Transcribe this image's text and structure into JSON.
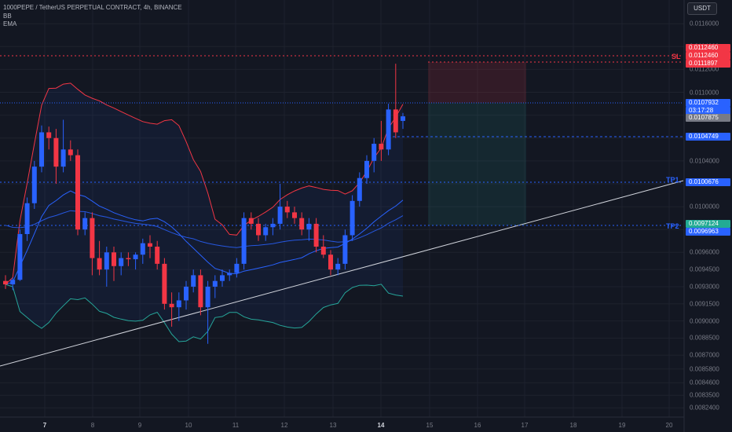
{
  "header": {
    "symbol_line": "1000PEPE / TetherUS PERPETUAL CONTRACT, 4h, BINANCE",
    "indicator_1": "BB",
    "indicator_2": "EMA"
  },
  "currency_button": "USDT",
  "price_axis": {
    "ticks": [
      "0.0116000",
      "0.0114000",
      "0.0112000",
      "0.0110000",
      "0.0108000",
      "0.0106000",
      "0.0104000",
      "0.0102000",
      "0.0100000",
      "0.0098000",
      "0.0096000",
      "0.0094500",
      "0.0093000",
      "0.0091500",
      "0.0090000",
      "0.0088500",
      "0.0087000",
      "0.0085800",
      "0.0084600",
      "0.0083500",
      "0.0082400"
    ]
  },
  "time_axis": {
    "ticks": [
      {
        "label": "7",
        "bold": true
      },
      {
        "label": "8",
        "bold": false
      },
      {
        "label": "9",
        "bold": false
      },
      {
        "label": "10",
        "bold": false
      },
      {
        "label": "11",
        "bold": false
      },
      {
        "label": "12",
        "bold": false
      },
      {
        "label": "13",
        "bold": false
      },
      {
        "label": "14",
        "bold": true
      },
      {
        "label": "15",
        "bold": false
      },
      {
        "label": "16",
        "bold": false
      },
      {
        "label": "17",
        "bold": false
      },
      {
        "label": "18",
        "bold": false
      },
      {
        "label": "19",
        "bold": false
      },
      {
        "label": "20",
        "bold": false
      }
    ]
  },
  "price_tags": {
    "sl_1": "0.0112460",
    "sl_2": "0.0112460",
    "sl_3": "0.0111897",
    "last_price": "0.0107932",
    "countdown": "03:17:28",
    "prev_close": "0.0107875",
    "entry": "0.0104749",
    "tp1": "0.0100676",
    "tp2_a": "0.0097124",
    "tp2_b": "0.0096963"
  },
  "levels": {
    "sl_label": "SL",
    "tp1_label": "TP1",
    "tp2_label": "TP2"
  },
  "colors": {
    "background": "#131722",
    "up": "#2962ff",
    "down": "#f23645",
    "sl": "#f23645",
    "tp": "#2962ff",
    "tp2_tag": "#22ab94",
    "prev_close_tag": "#787b86",
    "bb_upper": "#f23645",
    "bb_basis": "#2962ff",
    "bb_lower": "#26a69a",
    "ema": "#2962ff",
    "trendline": "#d1d4dc"
  },
  "chart_data": {
    "type": "candlestick",
    "title": "1000PEPE / TetherUS PERPETUAL CONTRACT, 4h, BINANCE",
    "ylim": [
      0.00818,
      0.01167
    ],
    "candles": [
      {
        "o": 0.00935,
        "h": 0.0094,
        "l": 0.00928,
        "c": 0.00932
      },
      {
        "o": 0.00932,
        "h": 0.00938,
        "l": 0.00927,
        "c": 0.00936
      },
      {
        "o": 0.00936,
        "h": 0.0098,
        "l": 0.00935,
        "c": 0.00976
      },
      {
        "o": 0.00976,
        "h": 0.01008,
        "l": 0.0097,
        "c": 0.01003
      },
      {
        "o": 0.01003,
        "h": 0.0104,
        "l": 0.00998,
        "c": 0.01035
      },
      {
        "o": 0.01035,
        "h": 0.01071,
        "l": 0.0103,
        "c": 0.01065
      },
      {
        "o": 0.01065,
        "h": 0.0107,
        "l": 0.0105,
        "c": 0.0106
      },
      {
        "o": 0.0106,
        "h": 0.01068,
        "l": 0.0102,
        "c": 0.01035
      },
      {
        "o": 0.01035,
        "h": 0.01076,
        "l": 0.0103,
        "c": 0.0105
      },
      {
        "o": 0.0105,
        "h": 0.01058,
        "l": 0.0104,
        "c": 0.01045
      },
      {
        "o": 0.01045,
        "h": 0.0105,
        "l": 0.00975,
        "c": 0.0098
      },
      {
        "o": 0.0098,
        "h": 0.00995,
        "l": 0.00975,
        "c": 0.0099
      },
      {
        "o": 0.0099,
        "h": 0.00995,
        "l": 0.0094,
        "c": 0.00955
      },
      {
        "o": 0.00955,
        "h": 0.0097,
        "l": 0.0094,
        "c": 0.00945
      },
      {
        "o": 0.00945,
        "h": 0.00965,
        "l": 0.0093,
        "c": 0.0096
      },
      {
        "o": 0.0096,
        "h": 0.00965,
        "l": 0.00935,
        "c": 0.00948
      },
      {
        "o": 0.00948,
        "h": 0.0096,
        "l": 0.0094,
        "c": 0.00955
      },
      {
        "o": 0.00955,
        "h": 0.0096,
        "l": 0.00948,
        "c": 0.00954
      },
      {
        "o": 0.00954,
        "h": 0.0096,
        "l": 0.00945,
        "c": 0.00958
      },
      {
        "o": 0.00958,
        "h": 0.00972,
        "l": 0.0095,
        "c": 0.00968
      },
      {
        "o": 0.00968,
        "h": 0.00975,
        "l": 0.00955,
        "c": 0.00965
      },
      {
        "o": 0.00965,
        "h": 0.0097,
        "l": 0.00945,
        "c": 0.0095
      },
      {
        "o": 0.0095,
        "h": 0.00955,
        "l": 0.0091,
        "c": 0.00915
      },
      {
        "o": 0.00915,
        "h": 0.00925,
        "l": 0.00895,
        "c": 0.00912
      },
      {
        "o": 0.00912,
        "h": 0.00925,
        "l": 0.009,
        "c": 0.00918
      },
      {
        "o": 0.00918,
        "h": 0.00935,
        "l": 0.0091,
        "c": 0.0093
      },
      {
        "o": 0.0093,
        "h": 0.00945,
        "l": 0.00925,
        "c": 0.0094
      },
      {
        "o": 0.0094,
        "h": 0.00945,
        "l": 0.00905,
        "c": 0.00912
      },
      {
        "o": 0.00912,
        "h": 0.00935,
        "l": 0.0088,
        "c": 0.0093
      },
      {
        "o": 0.0093,
        "h": 0.0094,
        "l": 0.0092,
        "c": 0.00935
      },
      {
        "o": 0.00935,
        "h": 0.00945,
        "l": 0.0093,
        "c": 0.0094
      },
      {
        "o": 0.0094,
        "h": 0.00945,
        "l": 0.00935,
        "c": 0.00942
      },
      {
        "o": 0.00942,
        "h": 0.00955,
        "l": 0.00938,
        "c": 0.0095
      },
      {
        "o": 0.0095,
        "h": 0.00995,
        "l": 0.00945,
        "c": 0.0099
      },
      {
        "o": 0.0099,
        "h": 0.00995,
        "l": 0.0098,
        "c": 0.00985
      },
      {
        "o": 0.00985,
        "h": 0.0099,
        "l": 0.0097,
        "c": 0.00975
      },
      {
        "o": 0.00975,
        "h": 0.00985,
        "l": 0.0097,
        "c": 0.00982
      },
      {
        "o": 0.00982,
        "h": 0.0099,
        "l": 0.00975,
        "c": 0.00985
      },
      {
        "o": 0.00985,
        "h": 0.0102,
        "l": 0.0098,
        "c": 0.01
      },
      {
        "o": 0.01,
        "h": 0.01005,
        "l": 0.0099,
        "c": 0.00995
      },
      {
        "o": 0.00995,
        "h": 0.01,
        "l": 0.00985,
        "c": 0.0099
      },
      {
        "o": 0.0099,
        "h": 0.00995,
        "l": 0.00975,
        "c": 0.0098
      },
      {
        "o": 0.0098,
        "h": 0.0099,
        "l": 0.0097,
        "c": 0.00985
      },
      {
        "o": 0.00985,
        "h": 0.0099,
        "l": 0.0096,
        "c": 0.00965
      },
      {
        "o": 0.00965,
        "h": 0.00975,
        "l": 0.00955,
        "c": 0.00958
      },
      {
        "o": 0.00958,
        "h": 0.00962,
        "l": 0.0094,
        "c": 0.00945
      },
      {
        "o": 0.00945,
        "h": 0.00955,
        "l": 0.0094,
        "c": 0.0095
      },
      {
        "o": 0.0095,
        "h": 0.0098,
        "l": 0.00945,
        "c": 0.00975
      },
      {
        "o": 0.00975,
        "h": 0.0101,
        "l": 0.0097,
        "c": 0.01005
      },
      {
        "o": 0.01005,
        "h": 0.0103,
        "l": 0.01,
        "c": 0.01025
      },
      {
        "o": 0.01025,
        "h": 0.01045,
        "l": 0.0102,
        "c": 0.0104
      },
      {
        "o": 0.0104,
        "h": 0.0106,
        "l": 0.0103,
        "c": 0.01055
      },
      {
        "o": 0.01055,
        "h": 0.01075,
        "l": 0.0104,
        "c": 0.0105
      },
      {
        "o": 0.0105,
        "h": 0.0109,
        "l": 0.01045,
        "c": 0.01085
      },
      {
        "o": 0.01085,
        "h": 0.01125,
        "l": 0.0106,
        "c": 0.01065
      },
      {
        "o": 0.01075,
        "h": 0.01082,
        "l": 0.01068,
        "c": 0.01079
      }
    ]
  }
}
